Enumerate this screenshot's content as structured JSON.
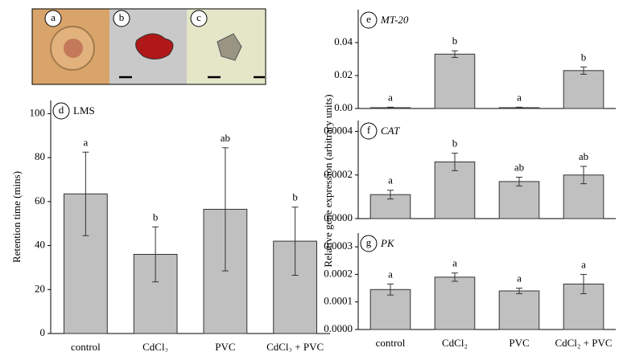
{
  "images": [
    {
      "label": "a"
    },
    {
      "label": "b"
    },
    {
      "label": "c"
    }
  ],
  "y_label_right": "Relative gene expression (arbitrary units)",
  "chart_data": [
    {
      "type": "bar",
      "panel": "d",
      "title": "LMS",
      "y_label": "Retention time (mins)",
      "categories": [
        "control",
        "CdCl₂",
        "PVC",
        "CdCl₂ + PVC"
      ],
      "values": [
        63.5,
        36,
        56.5,
        42
      ],
      "errors": [
        19,
        12.5,
        28,
        15.5
      ],
      "letters": [
        "a",
        "b",
        "ab",
        "b"
      ],
      "color": "#c0c0c0",
      "ylim": [
        0,
        106
      ],
      "yticks": [
        0,
        20,
        40,
        60,
        80,
        100
      ]
    },
    {
      "type": "bar",
      "panel": "e",
      "title": "MT-20",
      "values": [
        0.0005,
        0.033,
        0.0005,
        0.023
      ],
      "errors": [
        0.0003,
        0.002,
        0.0003,
        0.0022
      ],
      "letters": [
        "a",
        "b",
        "a",
        "b"
      ],
      "color": "#c0c0c0",
      "ylim": [
        0,
        0.06
      ],
      "yticks": [
        {
          "value": 0,
          "label": "0.00"
        },
        {
          "value": 0.02,
          "label": "0.02"
        },
        {
          "value": 0.04,
          "label": "0.04"
        }
      ]
    },
    {
      "type": "bar",
      "panel": "f",
      "title": "CAT",
      "values": [
        0.00011,
        0.00026,
        0.00017,
        0.0002
      ],
      "errors": [
        2e-05,
        4e-05,
        2e-05,
        4e-05
      ],
      "letters": [
        "a",
        "b",
        "ab",
        "ab"
      ],
      "color": "#c0c0c0",
      "ylim": [
        0,
        0.00045
      ],
      "yticks": [
        {
          "value": 0,
          "label": "0.0000"
        },
        {
          "value": 0.0002,
          "label": "0.0002"
        },
        {
          "value": 0.0004,
          "label": "0.0004"
        }
      ]
    },
    {
      "type": "bar",
      "panel": "g",
      "title": "PK",
      "categories": [
        "control",
        "CdCl₂",
        "PVC",
        "CdCl₂ + PVC"
      ],
      "values": [
        0.000145,
        0.00019,
        0.00014,
        0.000165
      ],
      "errors": [
        2e-05,
        1.5e-05,
        1e-05,
        3.5e-05
      ],
      "letters": [
        "a",
        "a",
        "a",
        "a"
      ],
      "color": "#c0c0c0",
      "ylim": [
        0,
        0.00035
      ],
      "yticks": [
        {
          "value": 0,
          "label": "0.0000"
        },
        {
          "value": 0.0001,
          "label": "0.0001"
        },
        {
          "value": 0.0002,
          "label": "0.0002"
        },
        {
          "value": 0.0003,
          "label": "0.0003"
        }
      ]
    }
  ]
}
